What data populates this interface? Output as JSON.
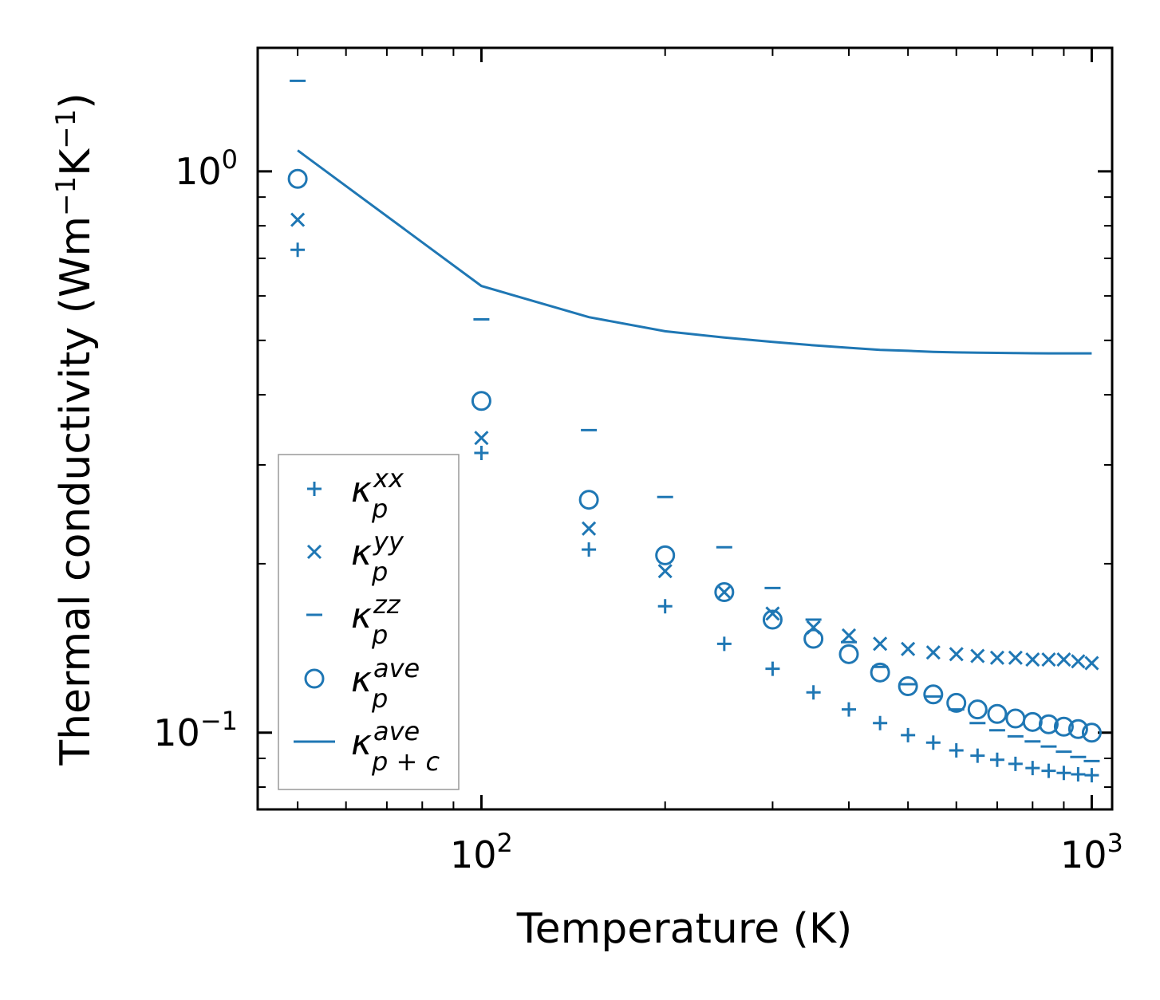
{
  "chart_data": {
    "type": "scatter",
    "title": "",
    "xlabel": "Temperature (K)",
    "ylabel_parts": [
      "Thermal conductivity (Wm",
      "−1",
      "K",
      "−1",
      ")"
    ],
    "xscale": "log",
    "yscale": "log",
    "xlim": [
      43,
      1080
    ],
    "ylim": [
      0.073,
      1.66
    ],
    "color": "#1f77b4",
    "x_tick_labels": [
      {
        "value": 100,
        "base": "10",
        "exp": "2"
      },
      {
        "value": 1000,
        "base": "10",
        "exp": "3"
      }
    ],
    "y_tick_labels": [
      {
        "value": 1.0,
        "base": "10",
        "exp": "0"
      },
      {
        "value": 0.1,
        "base": "10",
        "exp": "−1"
      }
    ],
    "legend_position": "lower-left",
    "x": [
      50,
      100,
      150,
      200,
      250,
      300,
      350,
      400,
      450,
      500,
      550,
      600,
      650,
      700,
      750,
      800,
      850,
      900,
      950,
      1000
    ],
    "series": [
      {
        "name": "kappa_p^xx",
        "label_base": "κ",
        "label_sub": "p",
        "label_sup": "xx",
        "marker": "plus",
        "values": [
          0.725,
          0.315,
          0.212,
          0.168,
          0.144,
          0.13,
          0.118,
          0.11,
          0.104,
          0.099,
          0.096,
          0.093,
          0.091,
          0.0895,
          0.088,
          0.0865,
          0.0855,
          0.0848,
          0.0843,
          0.084
        ]
      },
      {
        "name": "kappa_p^yy",
        "label_base": "κ",
        "label_sub": "p",
        "label_sup": "yy",
        "marker": "x",
        "values": [
          0.82,
          0.335,
          0.231,
          0.194,
          0.178,
          0.163,
          0.154,
          0.149,
          0.144,
          0.141,
          0.139,
          0.138,
          0.137,
          0.136,
          0.136,
          0.135,
          0.135,
          0.135,
          0.134,
          0.133
        ]
      },
      {
        "name": "kappa_p^zz",
        "label_base": "κ",
        "label_sub": "p",
        "label_sup": "zz",
        "marker": "hline",
        "values": [
          1.45,
          0.545,
          0.346,
          0.263,
          0.214,
          0.181,
          0.159,
          0.145,
          0.131,
          0.122,
          0.116,
          0.11,
          0.104,
          0.101,
          0.0985,
          0.0965,
          0.0945,
          0.0925,
          0.0905,
          0.089
        ]
      },
      {
        "name": "kappa_p^ave",
        "label_base": "κ",
        "label_sub": "p",
        "label_sup": "ave",
        "marker": "circle",
        "values": [
          0.97,
          0.39,
          0.26,
          0.207,
          0.178,
          0.159,
          0.147,
          0.138,
          0.128,
          0.121,
          0.117,
          0.113,
          0.11,
          0.108,
          0.106,
          0.1045,
          0.1035,
          0.1025,
          0.1015,
          0.1
        ]
      },
      {
        "name": "kappa_p+c^ave",
        "label_base": "κ",
        "label_sub": "p + c",
        "label_sup": "ave",
        "marker": "line",
        "values": [
          1.09,
          0.625,
          0.55,
          0.519,
          0.506,
          0.497,
          0.49,
          0.485,
          0.481,
          0.479,
          0.477,
          0.476,
          0.4755,
          0.475,
          0.4745,
          0.4742,
          0.474,
          0.474,
          0.474,
          0.474
        ]
      }
    ]
  }
}
